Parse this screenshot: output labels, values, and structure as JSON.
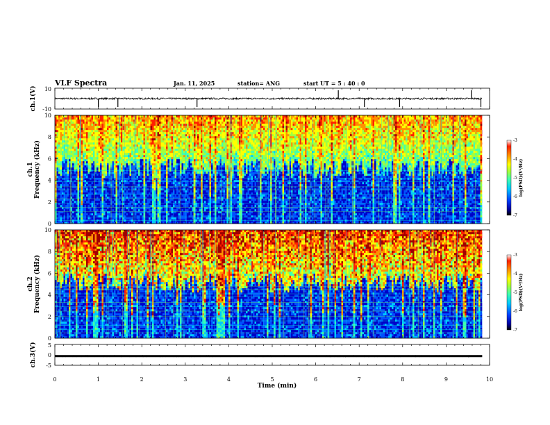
{
  "header": {
    "title": "VLF Spectra",
    "date": "Jan. 11, 2025",
    "station": "station= ANG",
    "start_ut": "start  UT =   5 : 40 : 0"
  },
  "colors": {
    "colormap": [
      "#000060",
      "#0000c8",
      "#0050ff",
      "#00c8ff",
      "#40ffb0",
      "#a0ff40",
      "#ffff00",
      "#ff9000",
      "#ff2000",
      "#a00000"
    ],
    "trace": "#000000",
    "background": "#ffffff"
  },
  "chart_data": [
    {
      "type": "line",
      "panel": "ch1-waveform",
      "ylabel": "ch.1(V)",
      "ylim": [
        -10,
        10
      ],
      "y_ticklabels": [
        "10",
        "-10"
      ],
      "x_range_min": [
        0,
        9.83
      ],
      "baseline_value": 0,
      "spikes_at_min": [
        1.0,
        1.45,
        3.27,
        6.52,
        7.12,
        7.93,
        9.58,
        9.8
      ]
    },
    {
      "type": "heatmap",
      "panel": "ch1-spectrogram",
      "ylabel": "ch.1\nFrequency (kHz)",
      "ylim": [
        0,
        10
      ],
      "y_ticklabels": [
        "0",
        "2",
        "4",
        "6",
        "8",
        "10"
      ],
      "x_range_min": [
        0,
        9.83
      ],
      "colorbar": {
        "label": "log(PSD)(V²/Hz)",
        "range": [
          -7,
          -3
        ],
        "ticklabels": [
          "-3",
          "-4",
          "-5",
          "-6",
          "-7"
        ]
      },
      "low_band_khz": [
        0,
        5
      ],
      "high_band_khz": [
        5,
        10
      ],
      "narrowband_lines_khz": [
        0.3,
        0.6,
        1.1,
        1.5,
        1.9,
        2.3,
        2.7,
        3.1,
        3.4,
        3.9,
        4.2,
        4.6,
        4.9
      ]
    },
    {
      "type": "heatmap",
      "panel": "ch2-spectrogram",
      "ylabel": "ch.2\nFrequency (kHz)",
      "ylim": [
        0,
        10
      ],
      "y_ticklabels": [
        "0",
        "2",
        "4",
        "6",
        "8",
        "10"
      ],
      "x_range_min": [
        0,
        9.83
      ],
      "colorbar": {
        "label": "log(PSD)(V²/Hz)",
        "range": [
          -7,
          -3
        ],
        "ticklabels": [
          "-3",
          "-4",
          "-5",
          "-6",
          "-7"
        ]
      },
      "low_band_khz": [
        0,
        5
      ],
      "high_band_khz": [
        5,
        10
      ],
      "narrowband_lines_khz": [
        0.5,
        0.8,
        1.2,
        1.6,
        2.0,
        2.5,
        2.9,
        3.3,
        3.8,
        4.1,
        4.5,
        4.8
      ]
    },
    {
      "type": "line",
      "panel": "ch3-waveform",
      "ylabel": "ch.3(V)",
      "ylim": [
        -5,
        5
      ],
      "y_ticklabels": [
        "5",
        "0",
        "-5"
      ],
      "x_range_min": [
        0,
        9.83
      ],
      "baseline_value": -0.6
    }
  ],
  "xaxis": {
    "label": "Time (min)",
    "range": [
      0,
      10
    ],
    "ticklabels": [
      "0",
      "1",
      "2",
      "3",
      "4",
      "5",
      "6",
      "7",
      "8",
      "9",
      "10"
    ]
  }
}
